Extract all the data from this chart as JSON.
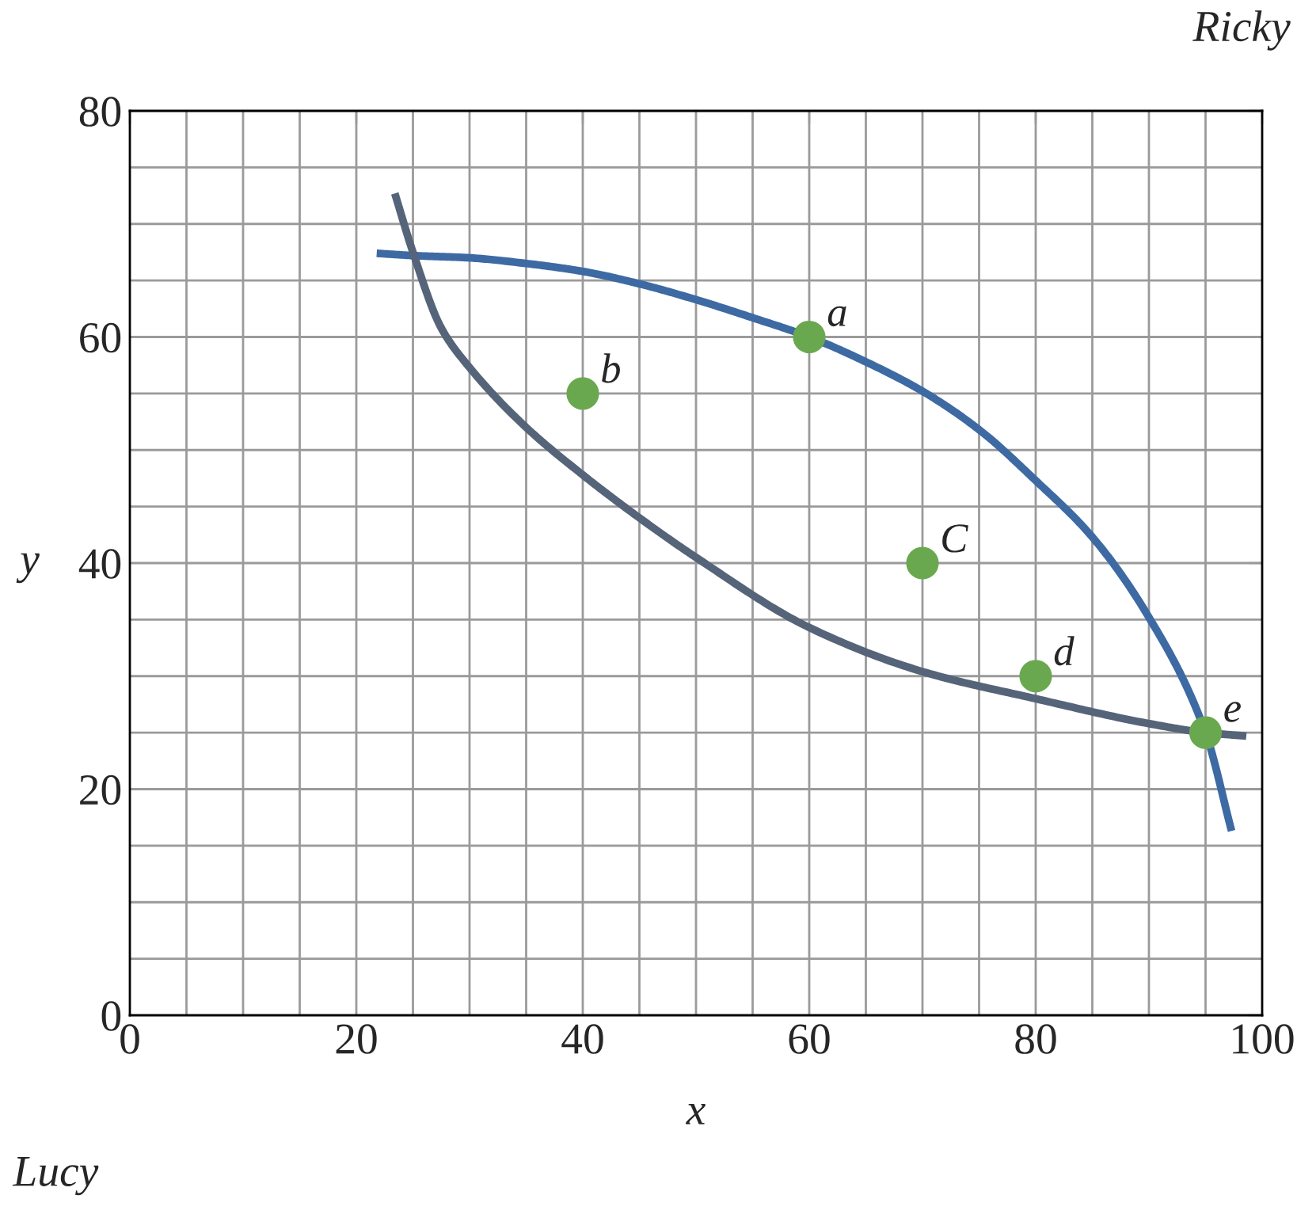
{
  "chart_data": {
    "type": "line",
    "xlabel": "x",
    "ylabel": "y",
    "xlim": [
      0,
      100
    ],
    "ylim": [
      0,
      80
    ],
    "xticks": [
      0,
      20,
      40,
      60,
      80,
      100
    ],
    "yticks": [
      0,
      20,
      40,
      60,
      80
    ],
    "grid": true,
    "legend": false,
    "marker": "none",
    "line_style": "solid",
    "series": [
      {
        "color": "#3e6aa3",
        "x": [
          21.8,
          25,
          30,
          35,
          40,
          45,
          50,
          55,
          60,
          65,
          70,
          75,
          80,
          85,
          90,
          95,
          97.3
        ],
        "values": [
          67.4,
          67.2,
          67.0,
          66.5,
          65.8,
          64.7,
          63.3,
          61.7,
          60.0,
          57.8,
          55.2,
          51.8,
          47.3,
          42.3,
          35.2,
          25.0,
          16.3
        ]
      },
      {
        "color": "#566479",
        "x": [
          23.4,
          25,
          27.5,
          30,
          35,
          40,
          45,
          50,
          60,
          70,
          80,
          90,
          95,
          98.6
        ],
        "values": [
          72.7,
          67.5,
          60.8,
          57.3,
          52.0,
          47.8,
          44.0,
          40.5,
          34.3,
          30.4,
          28.0,
          25.8,
          25.0,
          24.7
        ]
      },
      {
        "type": "scatter",
        "color": "#6aa84f",
        "marker": "circle",
        "x": [
          60,
          40,
          70,
          80,
          95
        ],
        "values": [
          60,
          55,
          40,
          30,
          25
        ],
        "value_labels": [
          "a",
          "b",
          "C",
          "d",
          "e"
        ]
      }
    ],
    "annotations": [
      "Ricky",
      "Lucy"
    ]
  }
}
